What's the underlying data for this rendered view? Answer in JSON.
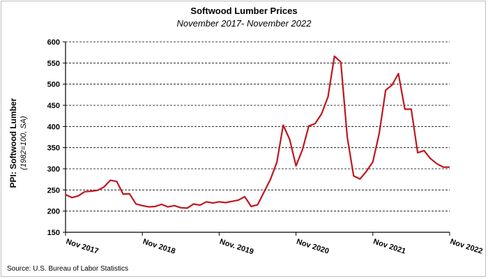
{
  "chart_data": {
    "type": "line",
    "title": "Softwood Lumber Prices",
    "subtitle": "November 2017- November 2022",
    "ylabel": "PPI: Softwood Lumber",
    "ylabel_sub": "(1982=100, SA)",
    "xlabel": "",
    "ylim": [
      150,
      600
    ],
    "yticks": [
      150,
      200,
      250,
      300,
      350,
      400,
      450,
      500,
      550,
      600
    ],
    "grid": "horizontal-dashed",
    "legend": "none",
    "source": "Source: U.S. Bureau of Labor Statistics",
    "x_tick_labels": [
      "Nov 2017",
      "Nov 2018",
      "Nov. 2019",
      "Nov 2020",
      "Nov 2021",
      "Nov 2022"
    ],
    "color": "#c0161d",
    "series": [
      {
        "x": [
          "Nov 2017",
          "Dec 2017",
          "Jan 2018",
          "Feb 2018",
          "Mar 2018",
          "Apr 2018",
          "May 2018",
          "Jun 2018",
          "Jul 2018",
          "Aug 2018",
          "Sep 2018",
          "Oct 2018",
          "Nov 2018",
          "Dec 2018",
          "Jan 2019",
          "Feb 2019",
          "Mar 2019",
          "Apr 2019",
          "May 2019",
          "Jun 2019",
          "Jul 2019",
          "Aug 2019",
          "Sep 2019",
          "Oct 2019",
          "Nov 2019",
          "Dec 2019",
          "Jan 2020",
          "Feb 2020",
          "Mar 2020",
          "Apr 2020",
          "May 2020",
          "Jun 2020",
          "Jul 2020",
          "Aug 2020",
          "Sep 2020",
          "Oct 2020",
          "Nov 2020",
          "Dec 2020",
          "Jan 2021",
          "Feb 2021",
          "Mar 2021",
          "Apr 2021",
          "May 2021",
          "Jun 2021",
          "Jul 2021",
          "Aug 2021",
          "Sep 2021",
          "Oct 2021",
          "Nov 2021",
          "Dec 2021",
          "Jan 2022",
          "Feb 2022",
          "Mar 2022",
          "Apr 2022",
          "May 2022",
          "Jun 2022",
          "Jul 2022",
          "Aug 2022",
          "Sep 2022",
          "Oct 2022",
          "Nov 2022"
        ],
        "values": [
          239,
          232,
          236,
          246,
          247,
          249,
          257,
          273,
          270,
          240,
          241,
          217,
          213,
          210,
          211,
          216,
          210,
          213,
          208,
          207,
          217,
          214,
          222,
          219,
          222,
          220,
          223,
          226,
          234,
          211,
          215,
          245,
          275,
          315,
          403,
          370,
          307,
          345,
          401,
          407,
          430,
          470,
          566,
          552,
          375,
          283,
          276,
          294,
          316,
          384,
          486,
          498,
          525,
          441,
          441,
          338,
          343,
          324,
          312,
          304,
          304
        ]
      }
    ]
  }
}
